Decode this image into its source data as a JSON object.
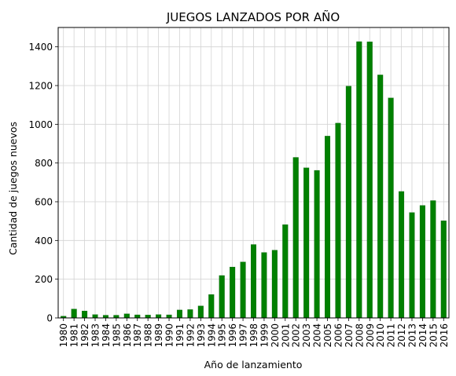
{
  "chart_data": {
    "type": "bar",
    "title": "JUEGOS LANZADOS POR AÑO",
    "xlabel": "Año de lanzamiento",
    "ylabel": "Cantidad de juegos nuevos",
    "categories": [
      "1980",
      "1981",
      "1982",
      "1983",
      "1984",
      "1985",
      "1986",
      "1987",
      "1988",
      "1989",
      "1990",
      "1991",
      "1992",
      "1993",
      "1994",
      "1995",
      "1996",
      "1997",
      "1998",
      "1999",
      "2000",
      "2001",
      "2002",
      "2003",
      "2004",
      "2005",
      "2006",
      "2007",
      "2008",
      "2009",
      "2010",
      "2011",
      "2012",
      "2013",
      "2014",
      "2015",
      "2016"
    ],
    "values": [
      9,
      46,
      36,
      17,
      14,
      14,
      21,
      16,
      15,
      17,
      16,
      41,
      43,
      62,
      121,
      219,
      263,
      289,
      379,
      338,
      350,
      482,
      829,
      775,
      762,
      939,
      1006,
      1197,
      1427,
      1426,
      1255,
      1136,
      653,
      544,
      581,
      606,
      502
    ],
    "ylim": [
      0,
      1500
    ],
    "yticks": [
      0,
      200,
      400,
      600,
      800,
      1000,
      1200,
      1400
    ],
    "grid": true,
    "bar_color": "#008000"
  }
}
